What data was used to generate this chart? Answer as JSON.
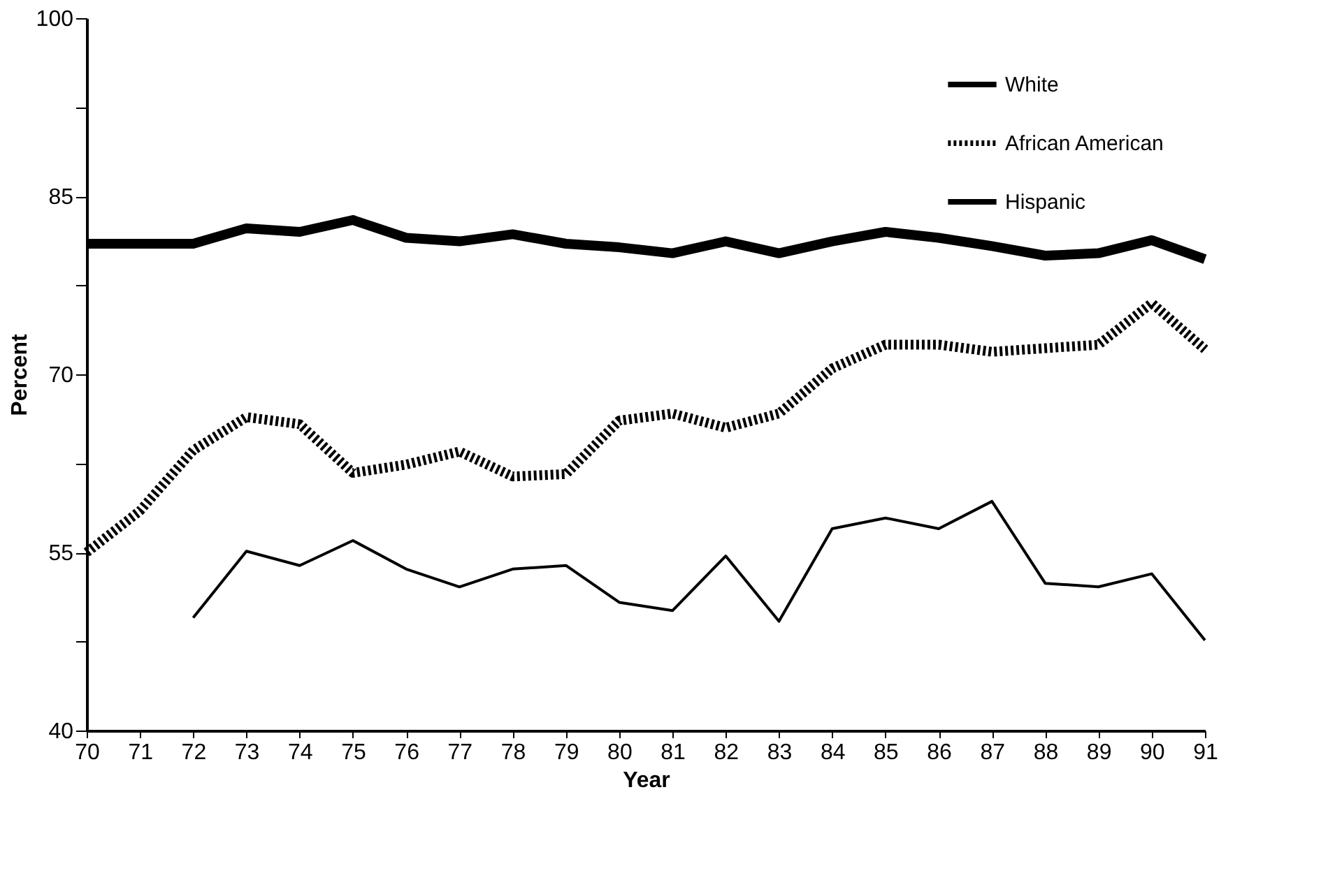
{
  "chart_data": {
    "type": "line",
    "xlabel": "Year",
    "ylabel": "Percent",
    "categories": [
      "70",
      "71",
      "72",
      "73",
      "74",
      "75",
      "76",
      "77",
      "78",
      "79",
      "80",
      "81",
      "82",
      "83",
      "84",
      "85",
      "86",
      "87",
      "88",
      "89",
      "90",
      "91"
    ],
    "ylim": [
      40,
      100
    ],
    "yticks": [
      40,
      {
        "value": 47.5,
        "label": null
      },
      55,
      {
        "value": 62.5,
        "label": null
      },
      70,
      {
        "value": 77.5,
        "label": null
      },
      85,
      {
        "value": 92.5,
        "label": null
      },
      100
    ],
    "grid": false,
    "legend": "top right",
    "marker": "none",
    "series": [
      {
        "name": "White",
        "color": "#000000",
        "line_style": "solid",
        "values": [
          81,
          81,
          81,
          82.3,
          82,
          83,
          81.5,
          81.2,
          81.8,
          81,
          80.7,
          80.2,
          81.2,
          80.2,
          81.2,
          82,
          81.5,
          80.8,
          80,
          80.2,
          81.3,
          79.7
        ]
      },
      {
        "name": "African American",
        "color": "#000000",
        "line_style": "dotted",
        "values": [
          55,
          58.5,
          63.6,
          66.4,
          65.8,
          61.7,
          62.4,
          63.5,
          61.4,
          61.6,
          66.1,
          66.7,
          65.5,
          66.7,
          70.5,
          72.5,
          72.5,
          71.9,
          72.2,
          72.5,
          76,
          72.1
        ]
      },
      {
        "name": "Hispanic",
        "color": "#000000",
        "line_style": "solid",
        "values": [
          null,
          null,
          49.5,
          55.1,
          53.9,
          56,
          53.6,
          52.1,
          53.6,
          53.9,
          50.8,
          50.1,
          54.7,
          49.2,
          57,
          57.9,
          57,
          59.3,
          52.4,
          52.1,
          53.2,
          47.6
        ]
      }
    ]
  }
}
